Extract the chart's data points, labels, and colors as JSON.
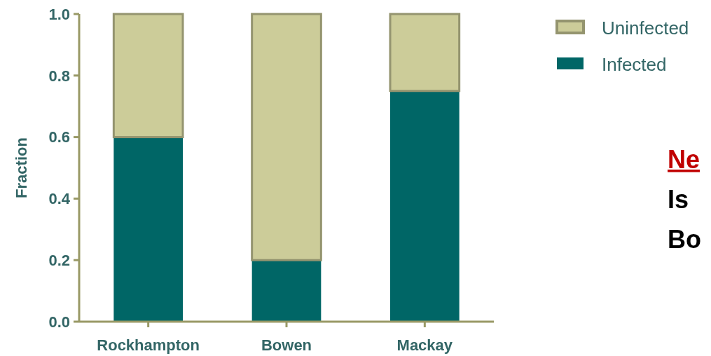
{
  "chart_data": {
    "type": "bar",
    "stacked": true,
    "ylabel": "Fraction",
    "categories": [
      "Rockhampton",
      "Bowen",
      "Mackay"
    ],
    "series": [
      {
        "name": "Infected",
        "color": "#006666",
        "values": [
          0.6,
          0.2,
          0.75
        ]
      },
      {
        "name": "Uninfected",
        "color": "#cccc99",
        "values": [
          0.4,
          0.8,
          0.25
        ]
      }
    ],
    "ylim": [
      0,
      1
    ],
    "yticks": [
      {
        "value": 0,
        "label": "0.0"
      },
      {
        "value": 0.2,
        "label": "0.2"
      },
      {
        "value": 0.4,
        "label": "0.4"
      },
      {
        "value": 0.6,
        "label": "0.6"
      },
      {
        "value": 0.8,
        "label": "0.8"
      },
      {
        "value": 1,
        "label": "1.0"
      }
    ],
    "grid": false,
    "legend": "top right",
    "annotations": [
      "Ne",
      "Is",
      "Bo"
    ]
  }
}
